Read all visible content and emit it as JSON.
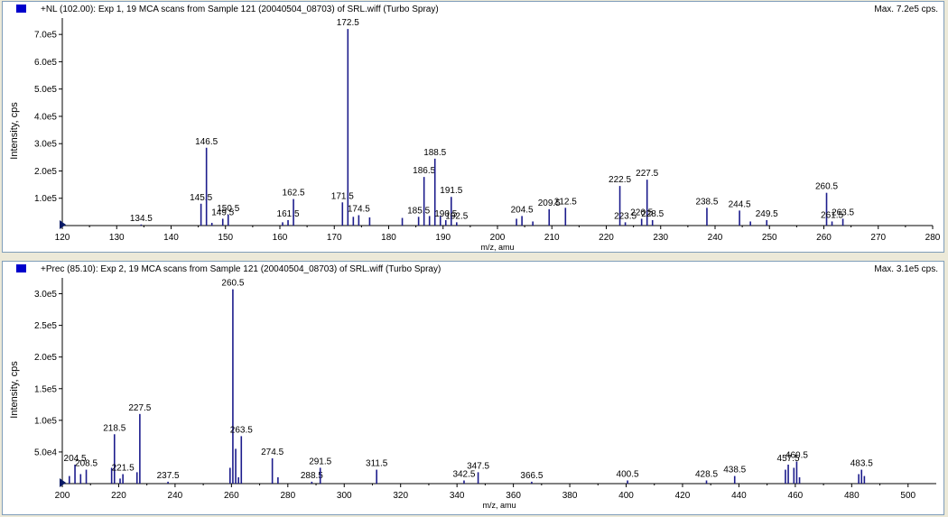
{
  "colors": {
    "peak": "#1c1c8c",
    "axis": "#000000",
    "label": "#000000",
    "marker": "#0a1a66",
    "header_square": "#0000cc"
  },
  "chart_data": [
    {
      "type": "bar",
      "title": "+NL (102.00): Exp 1, 19 MCA scans from Sample 121 (20040504_08703) of SRL.wiff (Turbo Spray)",
      "max_label": "Max. 7.2e5 cps.",
      "xlabel": "m/z, amu",
      "ylabel": "Intensity, cps",
      "xlim": [
        120,
        280
      ],
      "ylim": [
        0,
        760000
      ],
      "x_ticks": [
        120,
        130,
        140,
        150,
        160,
        170,
        180,
        190,
        200,
        210,
        220,
        230,
        240,
        250,
        260,
        270,
        280
      ],
      "y_ticks": [
        {
          "value": 100000,
          "label": "1.0e5"
        },
        {
          "value": 200000,
          "label": "2.0e5"
        },
        {
          "value": 300000,
          "label": "3.0e5"
        },
        {
          "value": 400000,
          "label": "4.0e5"
        },
        {
          "value": 500000,
          "label": "5.0e5"
        },
        {
          "value": 600000,
          "label": "6.0e5"
        },
        {
          "value": 700000,
          "label": "7.0e5"
        }
      ],
      "peaks": [
        {
          "mz": 134.5,
          "intensity": 4000,
          "label": "134.5"
        },
        {
          "mz": 145.5,
          "intensity": 80000,
          "label": "145.5"
        },
        {
          "mz": 146.5,
          "intensity": 285000,
          "label": "146.5"
        },
        {
          "mz": 147.5,
          "intensity": 10000
        },
        {
          "mz": 149.5,
          "intensity": 25000,
          "label": "149.5"
        },
        {
          "mz": 150.5,
          "intensity": 40000,
          "label": "150.5"
        },
        {
          "mz": 160.5,
          "intensity": 12000
        },
        {
          "mz": 161.5,
          "intensity": 20000,
          "label": "161.5"
        },
        {
          "mz": 162.5,
          "intensity": 97000,
          "label": "162.5"
        },
        {
          "mz": 171.5,
          "intensity": 85000,
          "label": "171.5"
        },
        {
          "mz": 172.5,
          "intensity": 720000,
          "label": "172.5"
        },
        {
          "mz": 173.5,
          "intensity": 32000
        },
        {
          "mz": 174.5,
          "intensity": 38000,
          "label": "174.5"
        },
        {
          "mz": 176.5,
          "intensity": 30000
        },
        {
          "mz": 182.5,
          "intensity": 28000
        },
        {
          "mz": 185.5,
          "intensity": 32000,
          "label": "185.5"
        },
        {
          "mz": 186.5,
          "intensity": 178000,
          "label": "186.5"
        },
        {
          "mz": 187.5,
          "intensity": 35000
        },
        {
          "mz": 188.5,
          "intensity": 245000,
          "label": "188.5"
        },
        {
          "mz": 189.5,
          "intensity": 35000
        },
        {
          "mz": 190.5,
          "intensity": 20000,
          "label": "190.5"
        },
        {
          "mz": 191.5,
          "intensity": 105000,
          "label": "191.5"
        },
        {
          "mz": 192.5,
          "intensity": 12000,
          "label": "192.5"
        },
        {
          "mz": 203.5,
          "intensity": 25000
        },
        {
          "mz": 204.5,
          "intensity": 35000,
          "label": "204.5"
        },
        {
          "mz": 206.5,
          "intensity": 15000
        },
        {
          "mz": 209.5,
          "intensity": 60000,
          "label": "209.5"
        },
        {
          "mz": 212.5,
          "intensity": 65000,
          "label": "212.5"
        },
        {
          "mz": 222.5,
          "intensity": 145000,
          "label": "222.5"
        },
        {
          "mz": 223.5,
          "intensity": 12000,
          "label": "223.5"
        },
        {
          "mz": 226.5,
          "intensity": 25000,
          "label": "226.5"
        },
        {
          "mz": 227.5,
          "intensity": 168000,
          "label": "227.5"
        },
        {
          "mz": 228.5,
          "intensity": 20000,
          "label": "228.5"
        },
        {
          "mz": 238.5,
          "intensity": 65000,
          "label": "238.5"
        },
        {
          "mz": 244.5,
          "intensity": 55000,
          "label": "244.5"
        },
        {
          "mz": 246.5,
          "intensity": 15000
        },
        {
          "mz": 249.5,
          "intensity": 20000,
          "label": "249.5"
        },
        {
          "mz": 260.5,
          "intensity": 120000,
          "label": "260.5"
        },
        {
          "mz": 261.5,
          "intensity": 15000,
          "label": "261.5"
        },
        {
          "mz": 263.5,
          "intensity": 25000,
          "label": "263.5"
        }
      ]
    },
    {
      "type": "bar",
      "title": "+Prec (85.10): Exp 2, 19 MCA scans from Sample 121 (20040504_08703) of SRL.wiff (Turbo Spray)",
      "max_label": "Max. 3.1e5 cps.",
      "xlabel": "m/z, amu",
      "ylabel": "Intensity, cps",
      "xlim": [
        200,
        510
      ],
      "ylim": [
        0,
        325000
      ],
      "x_ticks": [
        200,
        220,
        240,
        260,
        280,
        300,
        320,
        340,
        360,
        380,
        400,
        420,
        440,
        460,
        480,
        500
      ],
      "y_ticks": [
        {
          "value": 50000,
          "label": "5.0e4"
        },
        {
          "value": 100000,
          "label": "1.0e5"
        },
        {
          "value": 150000,
          "label": "1.5e5"
        },
        {
          "value": 200000,
          "label": "2.0e5"
        },
        {
          "value": 250000,
          "label": "2.5e5"
        },
        {
          "value": 300000,
          "label": "3.0e5"
        }
      ],
      "peaks": [
        {
          "mz": 202.5,
          "intensity": 12000
        },
        {
          "mz": 204.5,
          "intensity": 30000,
          "label": "204.5"
        },
        {
          "mz": 206.5,
          "intensity": 15000
        },
        {
          "mz": 208.5,
          "intensity": 22000,
          "label": "208.5"
        },
        {
          "mz": 217.5,
          "intensity": 25000
        },
        {
          "mz": 218.5,
          "intensity": 78000,
          "label": "218.5"
        },
        {
          "mz": 220.5,
          "intensity": 8000
        },
        {
          "mz": 221.5,
          "intensity": 15000,
          "label": "221.5"
        },
        {
          "mz": 226.5,
          "intensity": 18000
        },
        {
          "mz": 227.5,
          "intensity": 110000,
          "label": "227.5"
        },
        {
          "mz": 237.5,
          "intensity": 3000,
          "label": "237.5"
        },
        {
          "mz": 259.5,
          "intensity": 25000
        },
        {
          "mz": 260.5,
          "intensity": 307000,
          "label": "260.5"
        },
        {
          "mz": 261.5,
          "intensity": 55000
        },
        {
          "mz": 262.5,
          "intensity": 10000
        },
        {
          "mz": 263.5,
          "intensity": 75000,
          "label": "263.5"
        },
        {
          "mz": 274.5,
          "intensity": 40000,
          "label": "274.5"
        },
        {
          "mz": 276.5,
          "intensity": 10000
        },
        {
          "mz": 288.5,
          "intensity": 3000,
          "label": "288.5"
        },
        {
          "mz": 291.5,
          "intensity": 25000,
          "label": "291.5"
        },
        {
          "mz": 311.5,
          "intensity": 22000,
          "label": "311.5"
        },
        {
          "mz": 342.5,
          "intensity": 5000,
          "label": "342.5"
        },
        {
          "mz": 347.5,
          "intensity": 18000,
          "label": "347.5"
        },
        {
          "mz": 366.5,
          "intensity": 3000,
          "label": "366.5"
        },
        {
          "mz": 400.5,
          "intensity": 5000,
          "label": "400.5"
        },
        {
          "mz": 428.5,
          "intensity": 5000,
          "label": "428.5"
        },
        {
          "mz": 438.5,
          "intensity": 12000,
          "label": "438.5"
        },
        {
          "mz": 456.5,
          "intensity": 22000
        },
        {
          "mz": 457.5,
          "intensity": 30000,
          "label": "457.5"
        },
        {
          "mz": 459.5,
          "intensity": 25000
        },
        {
          "mz": 460.5,
          "intensity": 35000,
          "label": "460.5"
        },
        {
          "mz": 461.5,
          "intensity": 10000
        },
        {
          "mz": 482.5,
          "intensity": 15000
        },
        {
          "mz": 483.5,
          "intensity": 22000,
          "label": "483.5"
        },
        {
          "mz": 484.5,
          "intensity": 12000
        }
      ]
    }
  ]
}
